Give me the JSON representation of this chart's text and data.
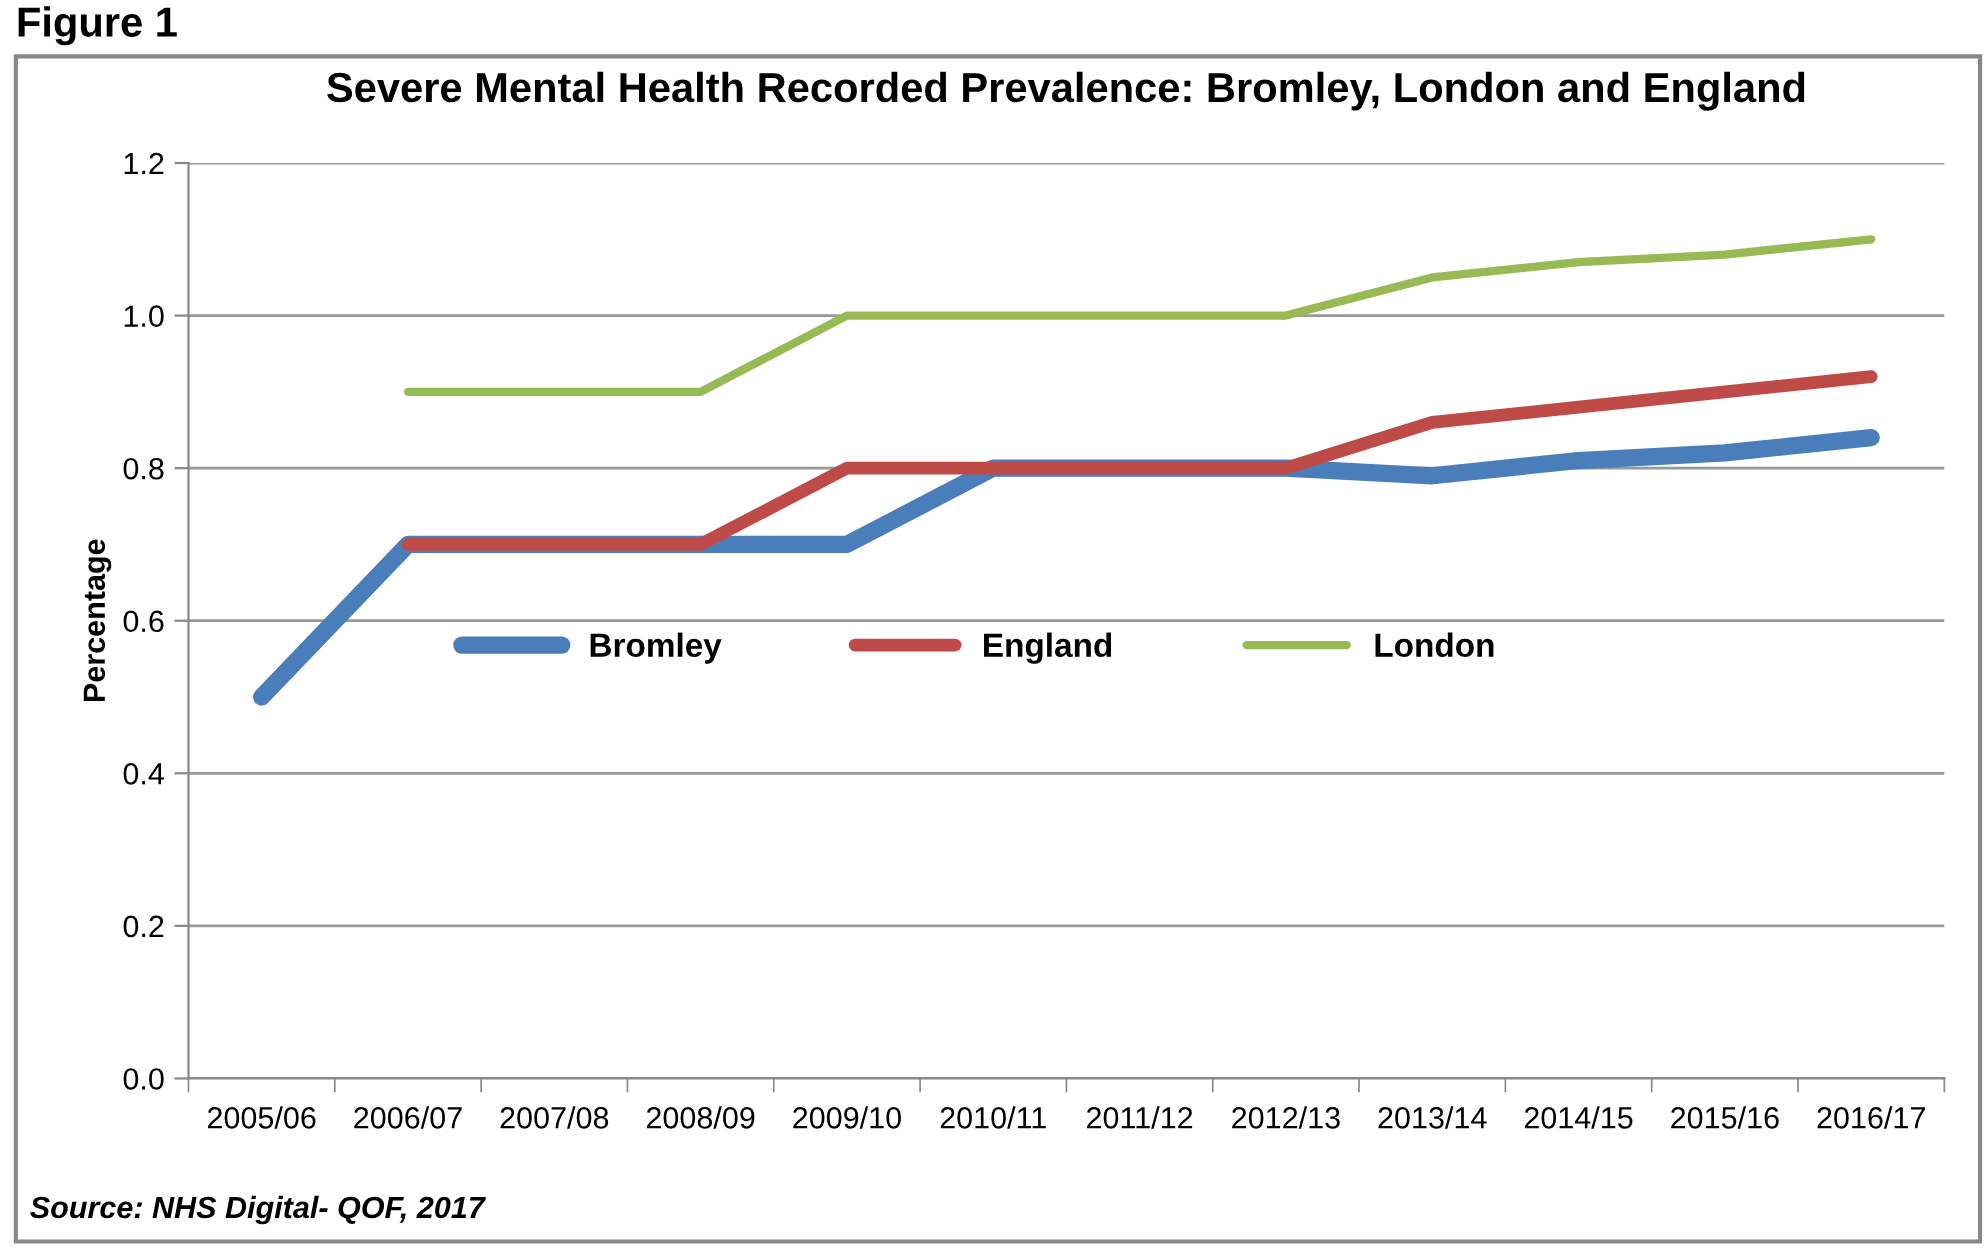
{
  "chart_data": {
    "type": "line",
    "title": "Severe Mental Health Recorded Prevalence: Bromley, London and England",
    "ylabel": "Percentage",
    "annotations": [
      "Figure 1",
      "Source: NHS Digital- QOF, 2017"
    ],
    "categories": [
      "2005/06",
      "2006/07",
      "2007/08",
      "2008/09",
      "2009/10",
      "2010/11",
      "2011/12",
      "2012/13",
      "2013/14",
      "2014/15",
      "2015/16",
      "2016/17"
    ],
    "series": [
      {
        "name": "Bromley",
        "color": "#4a7ebb",
        "values": [
          0.5,
          0.7,
          0.7,
          0.7,
          0.7,
          0.8,
          0.8,
          0.8,
          0.79,
          0.81,
          0.82,
          0.84
        ]
      },
      {
        "name": "England",
        "color": "#be4b48",
        "values": [
          null,
          0.7,
          0.7,
          0.7,
          0.8,
          0.8,
          0.8,
          0.8,
          0.86,
          0.88,
          0.9,
          0.92
        ]
      },
      {
        "name": "London",
        "color": "#98b954",
        "values": [
          null,
          0.9,
          0.9,
          0.9,
          1.0,
          1.0,
          1.0,
          1.0,
          1.05,
          1.07,
          1.08,
          1.1
        ]
      }
    ],
    "ylim": [
      0,
      1.2
    ],
    "yticks": [
      {
        "value": 0,
        "label": "0.0"
      },
      {
        "value": 0.2,
        "label": "0.2"
      },
      {
        "value": 0.4,
        "label": "0.4"
      },
      {
        "value": 0.6,
        "label": "0.6"
      },
      {
        "value": 0.8,
        "label": "0.8"
      },
      {
        "value": 1.0,
        "label": "1.0"
      },
      {
        "value": 1.2,
        "label": "1.2"
      }
    ],
    "grid": "y",
    "legend": "center",
    "marker": "none",
    "line_style": "solid"
  }
}
